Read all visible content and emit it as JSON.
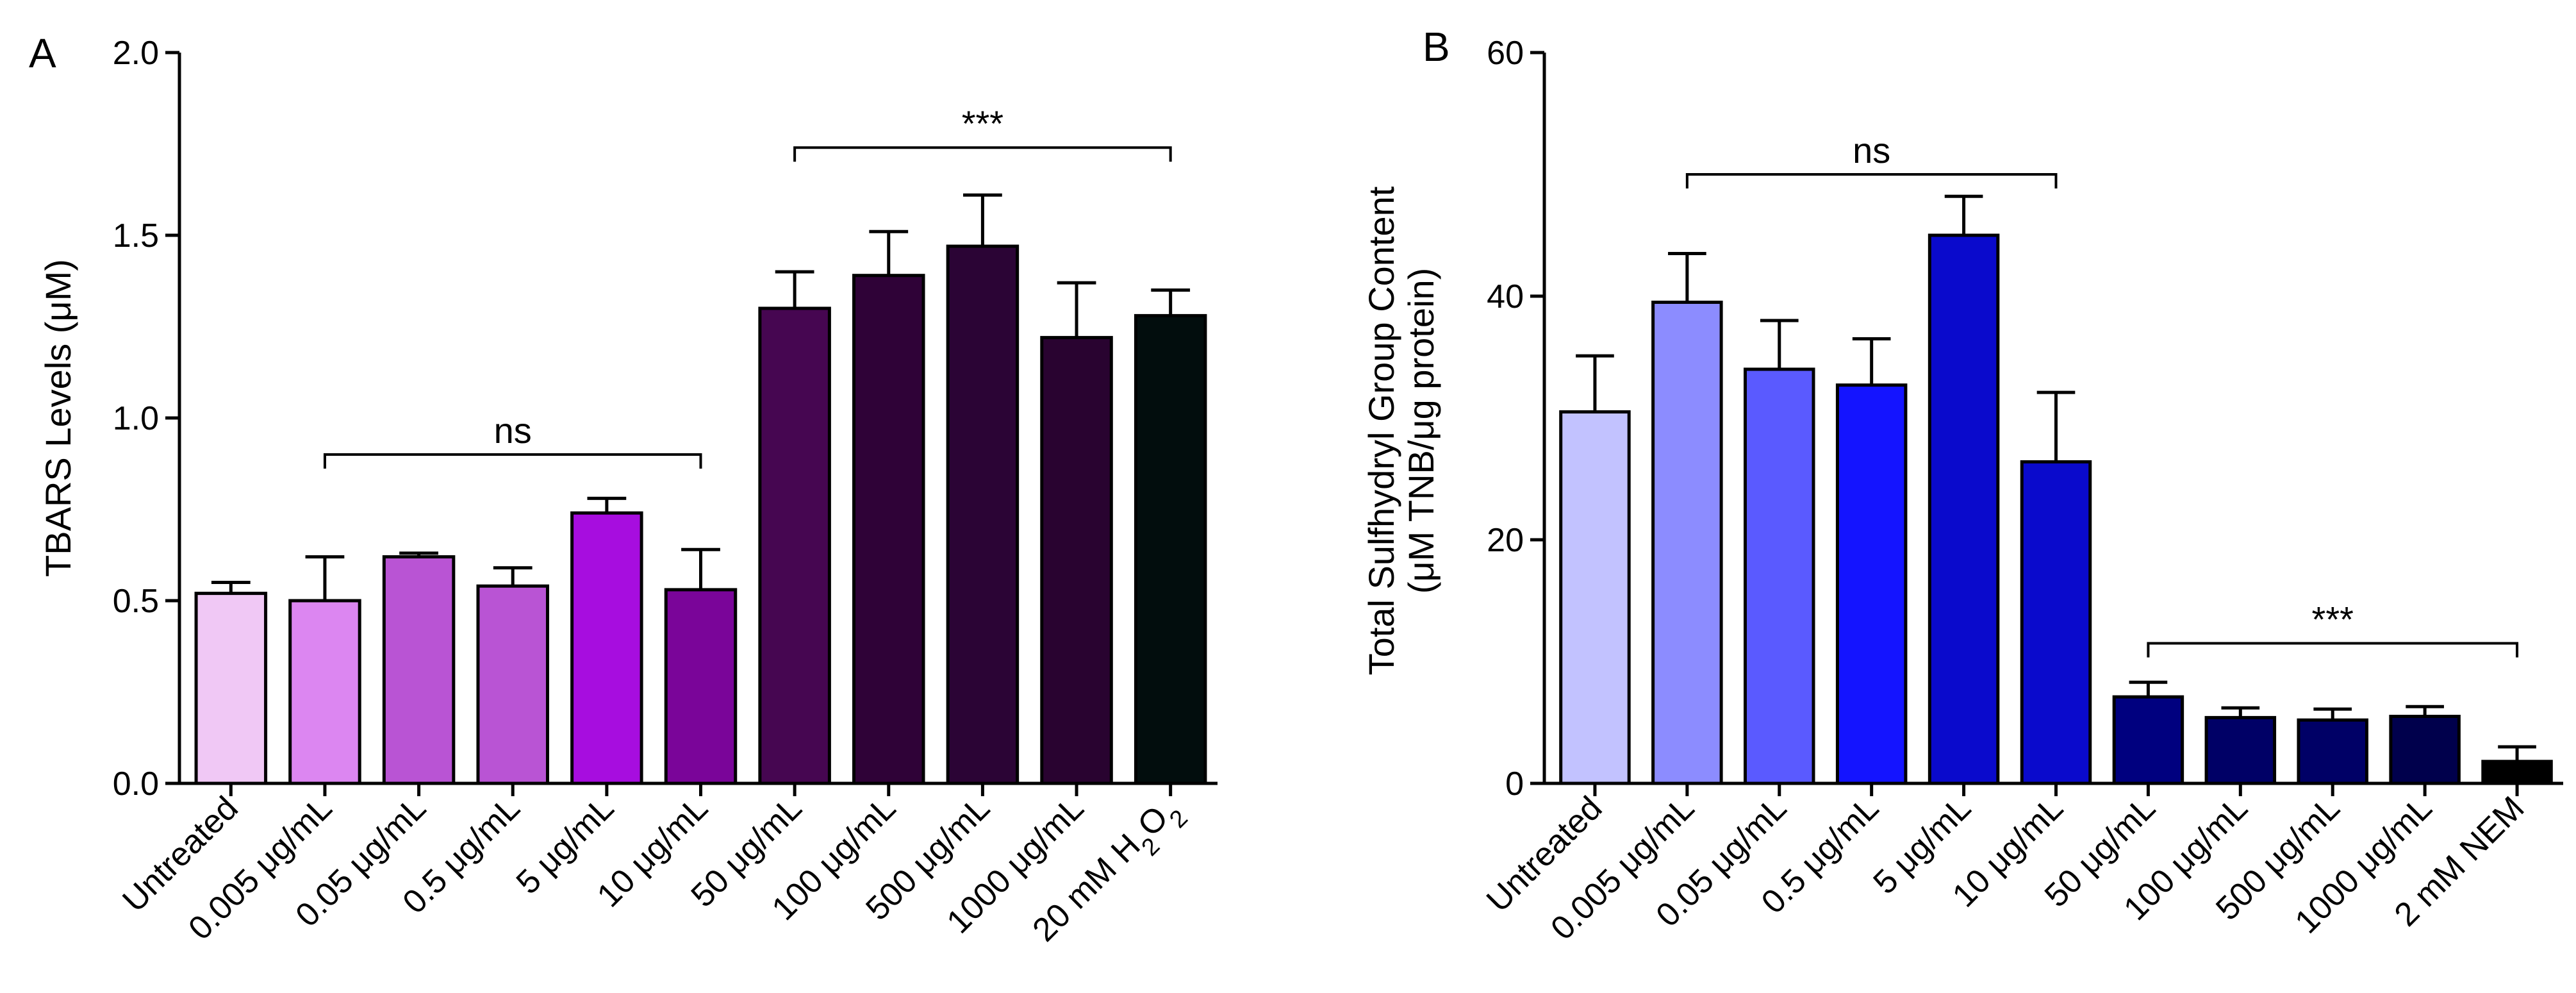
{
  "chart_data": [
    {
      "type": "bar",
      "panel": "A",
      "ylabel": "TBARS Levels (μM)",
      "ylim": [
        0,
        2.0
      ],
      "yticks": [
        0.0,
        0.5,
        1.0,
        1.5,
        2.0
      ],
      "ytick_labels": [
        "0.0",
        "0.5",
        "1.0",
        "1.5",
        "2.0"
      ],
      "categories": [
        "Untreated",
        "0.005 μg/mL",
        "0.05 μg/mL",
        "0.5 μg/mL",
        "5 μg/mL",
        "10 μg/mL",
        "50 μg/mL",
        "100 μg/mL",
        "500 μg/mL",
        "1000 μg/mL",
        "20 mM H₂O₂"
      ],
      "values": [
        0.52,
        0.5,
        0.62,
        0.54,
        0.74,
        0.53,
        1.3,
        1.39,
        1.47,
        1.22,
        1.28
      ],
      "errors": [
        0.03,
        0.12,
        0.01,
        0.05,
        0.04,
        0.11,
        0.1,
        0.12,
        0.14,
        0.15,
        0.07
      ],
      "colors": [
        "#f0c8f5",
        "#dc86f1",
        "#b954d4",
        "#b954d4",
        "#a70ddf",
        "#7a0599",
        "#460651",
        "#2f0237",
        "#2b0435",
        "#290330",
        "#020d0d"
      ],
      "annotations": [
        {
          "text": "ns",
          "from": 1,
          "to": 5,
          "level": 0.9
        },
        {
          "text": "***",
          "from": 6,
          "to": 10,
          "level": 1.74
        }
      ]
    },
    {
      "type": "bar",
      "panel": "B",
      "ylabel": "Total Sulfhydryl Group Content (μM TNB/μg protein)",
      "ylabel_lines": [
        "Total Sulfhydryl Group Content",
        "(μM TNB/μg protein)"
      ],
      "ylim": [
        0,
        60
      ],
      "yticks": [
        0,
        20,
        40,
        60
      ],
      "ytick_labels": [
        "0",
        "20",
        "40",
        "60"
      ],
      "categories": [
        "Untreated",
        "0.005 μg/mL",
        "0.05 μg/mL",
        "0.5 μg/mL",
        "5 μg/mL",
        "10 μg/mL",
        "50 μg/mL",
        "100 μg/mL",
        "500 μg/mL",
        "1000 μg/mL",
        "2 mM NEM"
      ],
      "values": [
        30.5,
        39.5,
        34,
        32.7,
        45,
        26.4,
        7.1,
        5.4,
        5.2,
        5.5,
        1.8
      ],
      "errors": [
        4.6,
        4.0,
        4.0,
        3.8,
        3.2,
        5.7,
        1.2,
        0.8,
        0.9,
        0.8,
        1.2
      ],
      "colors": [
        "#c2c2ff",
        "#8c8cff",
        "#5a5aff",
        "#1414ff",
        "#0a0acc",
        "#0a0acc",
        "#00007f",
        "#000066",
        "#000066",
        "#00004c",
        "#000000"
      ],
      "annotations": [
        {
          "text": "ns",
          "from": 1,
          "to": 5,
          "level": 50
        },
        {
          "text": "***",
          "from": 6,
          "to": 10,
          "level": 11.5
        }
      ]
    }
  ]
}
